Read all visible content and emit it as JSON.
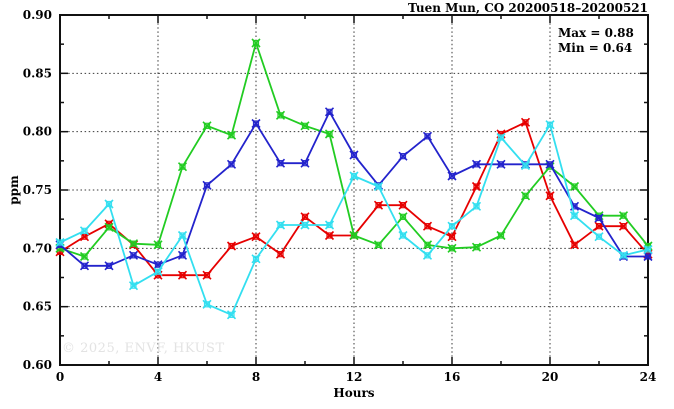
{
  "header": {
    "title": "Tuen Mun, CO 20200518–20200521"
  },
  "annotations": {
    "max_label": "Max = 0.88",
    "min_label": "Min = 0.64"
  },
  "watermark": "© 2025, ENVF, HKUST",
  "chart_data": {
    "type": "line",
    "title": "Tuen Mun, CO 20200518–20200521",
    "xlabel": "Hours",
    "ylabel": "ppm",
    "xlim": [
      0,
      24
    ],
    "ylim": [
      0.6,
      0.9
    ],
    "x_major_ticks": [
      0,
      4,
      8,
      12,
      16,
      20,
      24
    ],
    "x_minor_ticks": [
      2,
      6,
      10,
      14,
      18,
      22
    ],
    "y_major_ticks": [
      0.6,
      0.65,
      0.7,
      0.75,
      0.8,
      0.85,
      0.9
    ],
    "y_minor_ticks": [
      0.625,
      0.675,
      0.725,
      0.775,
      0.825,
      0.875
    ],
    "x_gridlines": [
      4,
      8,
      12,
      16,
      20
    ],
    "y_gridlines": [
      0.65,
      0.7,
      0.75,
      0.8,
      0.85
    ],
    "grid": "dotted",
    "legend": "none",
    "stats": {
      "max": 0.88,
      "min": 0.64
    },
    "x": [
      0,
      1,
      2,
      3,
      4,
      5,
      6,
      7,
      8,
      9,
      10,
      11,
      12,
      13,
      14,
      15,
      16,
      17,
      18,
      19,
      20,
      21,
      22,
      23,
      24
    ],
    "series": [
      {
        "name": "red",
        "color": "#e60000",
        "values": [
          0.697,
          0.71,
          0.721,
          0.703,
          0.677,
          0.677,
          0.677,
          0.702,
          0.71,
          0.695,
          0.727,
          0.711,
          0.711,
          0.737,
          0.737,
          0.719,
          0.71,
          0.753,
          0.798,
          0.808,
          0.745,
          0.703,
          0.719,
          0.719,
          0.695
        ]
      },
      {
        "name": "green",
        "color": "#22cc22",
        "values": [
          0.7,
          0.693,
          0.718,
          0.704,
          0.703,
          0.77,
          0.805,
          0.797,
          0.876,
          0.814,
          0.805,
          0.798,
          0.711,
          0.703,
          0.727,
          0.703,
          0.7,
          0.701,
          0.711,
          0.745,
          0.77,
          0.753,
          0.728,
          0.728,
          0.702
        ]
      },
      {
        "name": "blue",
        "color": "#2323cc",
        "values": [
          0.703,
          0.685,
          0.685,
          0.694,
          0.686,
          0.694,
          0.754,
          0.772,
          0.807,
          0.773,
          0.773,
          0.817,
          0.78,
          0.754,
          0.779,
          0.796,
          0.762,
          0.772,
          0.772,
          0.772,
          0.772,
          0.736,
          0.726,
          0.693,
          0.693
        ]
      },
      {
        "name": "cyan",
        "color": "#33dff0",
        "values": [
          0.705,
          0.715,
          0.738,
          0.668,
          0.68,
          0.711,
          0.652,
          0.643,
          0.691,
          0.72,
          0.72,
          0.72,
          0.762,
          0.753,
          0.711,
          0.694,
          0.719,
          0.736,
          0.795,
          0.771,
          0.806,
          0.728,
          0.71,
          0.694,
          0.699
        ]
      }
    ]
  }
}
